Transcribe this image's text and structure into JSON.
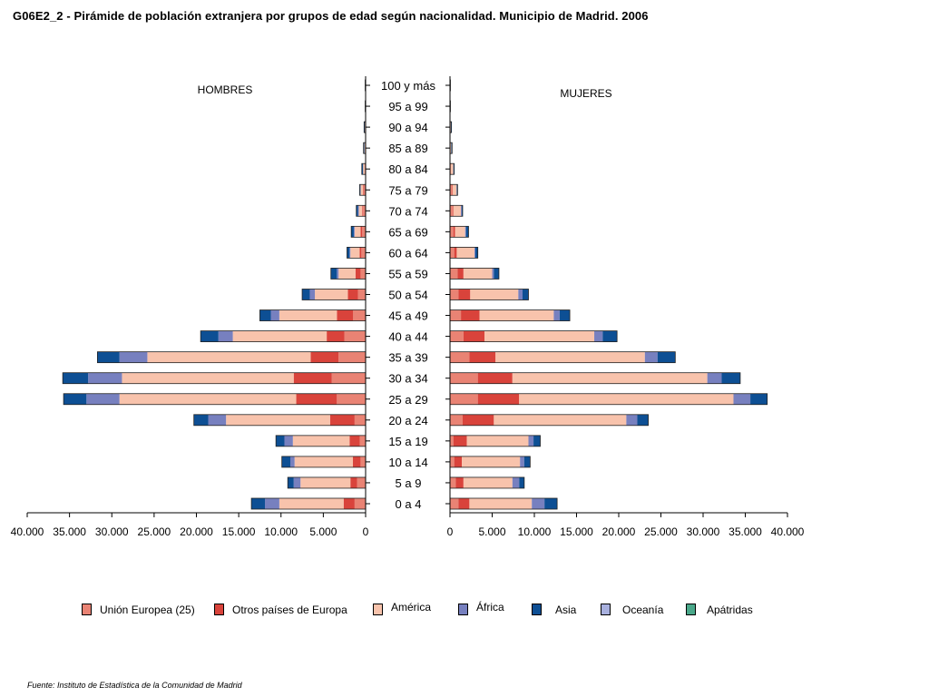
{
  "title": "G06E2_2 - Pirámide de población extranjera por grupos de edad según nacionalidad.  Municipio de Madrid. 2006",
  "source": "Fuente: Instituto de Estadística de la Comunidad de Madrid",
  "chart_data": {
    "type": "bar",
    "panels": {
      "left": "HOMBRES",
      "right": "MUJERES"
    },
    "categories": [
      "100 y más",
      "95 a 99",
      "90 a 94",
      "85 a 89",
      "80 a 84",
      "75 a 79",
      "70 a 74",
      "65 a 69",
      "60 a 64",
      "55 a 59",
      "50 a 54",
      "45 a 49",
      "40 a 44",
      "35 a 39",
      "30 a 34",
      "25 a 29",
      "20 a 24",
      "15 a 19",
      "10 a 14",
      "5 a 9",
      "0 a 4"
    ],
    "left_ticks": [
      "40.000",
      "35.000",
      "30.000",
      "25.000",
      "20.000",
      "15.000",
      "10.000",
      "5.000",
      "0"
    ],
    "right_ticks": [
      "0",
      "5.000",
      "10.000",
      "15.000",
      "20.000",
      "25.000",
      "30.000",
      "35.000",
      "40.000"
    ],
    "xlim": [
      0,
      40000
    ],
    "series": [
      {
        "name": "Unión Europea (25)",
        "color": "#e98374"
      },
      {
        "name": "Otros países de Europa",
        "color": "#d9433b"
      },
      {
        "name": "América",
        "color": "#f8c3ac"
      },
      {
        "name": "África",
        "color": "#7780bf"
      },
      {
        "name": "Asia",
        "color": "#0d4f94"
      },
      {
        "name": "Oceanía",
        "color": "#a8b0de"
      },
      {
        "name": "Apátridas",
        "color": "#4aa88a"
      }
    ],
    "hombres": [
      [
        0,
        0,
        0,
        0,
        50,
        0,
        0
      ],
      [
        0,
        0,
        0,
        0,
        50,
        0,
        0
      ],
      [
        0,
        0,
        100,
        0,
        80,
        0,
        0
      ],
      [
        0,
        0,
        150,
        0,
        100,
        0,
        0
      ],
      [
        100,
        0,
        200,
        0,
        150,
        0,
        0
      ],
      [
        200,
        100,
        300,
        0,
        100,
        0,
        0
      ],
      [
        300,
        100,
        400,
        100,
        200,
        0,
        0
      ],
      [
        400,
        200,
        700,
        100,
        300,
        0,
        0
      ],
      [
        500,
        200,
        1100,
        100,
        300,
        0,
        0
      ],
      [
        600,
        600,
        2000,
        200,
        700,
        0,
        0
      ],
      [
        900,
        1200,
        3900,
        600,
        900,
        0,
        0
      ],
      [
        1500,
        1900,
        6800,
        1000,
        1300,
        0,
        0
      ],
      [
        2500,
        2100,
        11100,
        1700,
        2100,
        0,
        0
      ],
      [
        3200,
        3300,
        19300,
        3300,
        2600,
        0,
        0
      ],
      [
        4000,
        4500,
        20300,
        4000,
        3000,
        0,
        0
      ],
      [
        3400,
        4800,
        20900,
        3900,
        2700,
        0,
        0
      ],
      [
        1300,
        2900,
        12300,
        2100,
        1700,
        0,
        0
      ],
      [
        700,
        1200,
        6700,
        1000,
        1000,
        0,
        0
      ],
      [
        600,
        900,
        6900,
        500,
        1000,
        0,
        0
      ],
      [
        1000,
        800,
        5900,
        800,
        700,
        0,
        0
      ],
      [
        1300,
        1300,
        7600,
        1700,
        1600,
        0,
        0
      ]
    ],
    "mujeres": [
      [
        0,
        0,
        0,
        0,
        50,
        0,
        0
      ],
      [
        0,
        0,
        0,
        0,
        50,
        0,
        0
      ],
      [
        0,
        0,
        100,
        0,
        80,
        0,
        0
      ],
      [
        0,
        0,
        150,
        0,
        100,
        0,
        0
      ],
      [
        100,
        0,
        300,
        0,
        100,
        0,
        0
      ],
      [
        200,
        100,
        500,
        0,
        100,
        0,
        0
      ],
      [
        300,
        100,
        900,
        100,
        100,
        0,
        0
      ],
      [
        400,
        200,
        1200,
        100,
        300,
        0,
        0
      ],
      [
        500,
        300,
        2100,
        100,
        300,
        0,
        0
      ],
      [
        900,
        700,
        3400,
        200,
        600,
        0,
        0
      ],
      [
        1000,
        1400,
        5700,
        500,
        700,
        0,
        0
      ],
      [
        1300,
        2200,
        8800,
        700,
        1200,
        0,
        0
      ],
      [
        1600,
        2500,
        13000,
        1000,
        1700,
        0,
        0
      ],
      [
        2300,
        3100,
        17700,
        1500,
        2100,
        0,
        0
      ],
      [
        3300,
        4100,
        23100,
        1700,
        2200,
        0,
        0
      ],
      [
        3300,
        4900,
        25400,
        2000,
        2000,
        0,
        0
      ],
      [
        1500,
        3700,
        15700,
        1300,
        1300,
        0,
        0
      ],
      [
        400,
        1600,
        7300,
        600,
        800,
        0,
        0
      ],
      [
        500,
        900,
        6900,
        500,
        700,
        0,
        0
      ],
      [
        700,
        900,
        5800,
        800,
        600,
        0,
        0
      ],
      [
        1000,
        1300,
        7400,
        1500,
        1500,
        0,
        0
      ]
    ]
  }
}
